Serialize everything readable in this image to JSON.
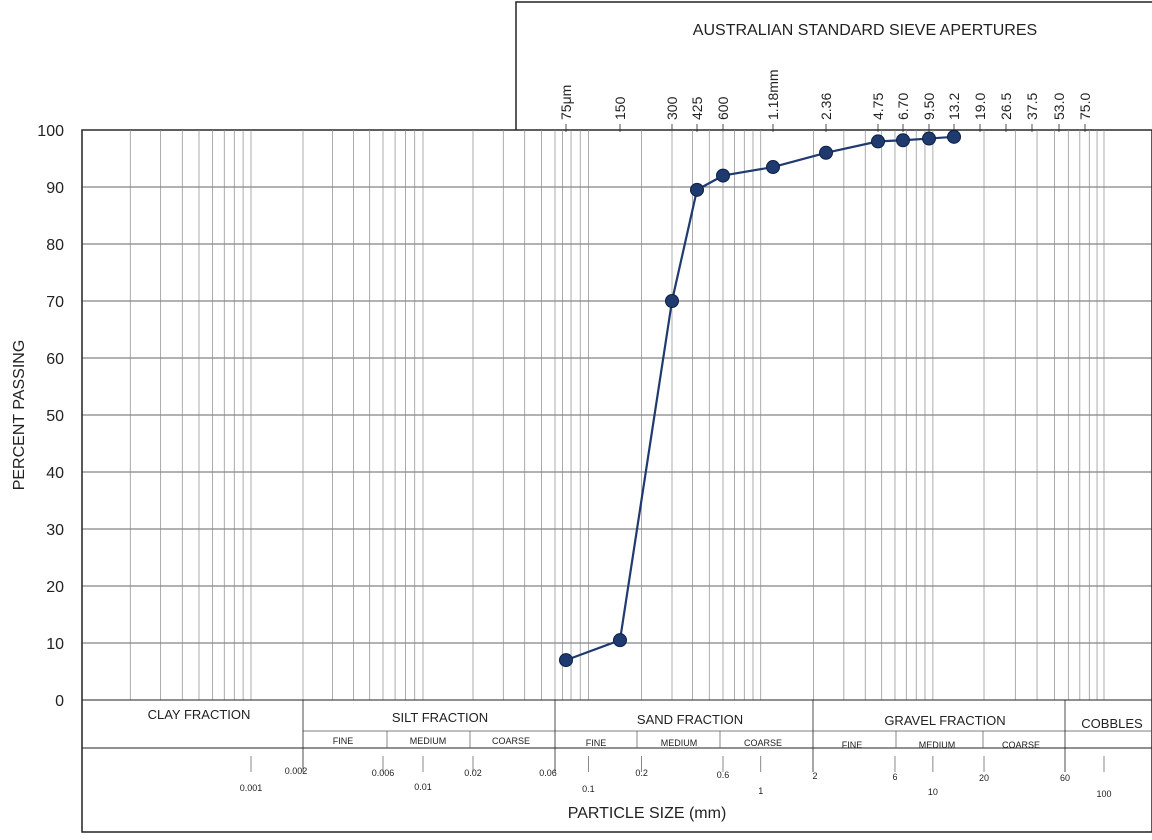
{
  "chart_data": {
    "type": "line",
    "title": "AUSTRALIAN STANDARD SIEVE APERTURES",
    "xlabel": "PARTICLE SIZE (mm)",
    "ylabel": "PERCENT PASSING",
    "x_scale": "log",
    "xlim": [
      0.0001,
      100
    ],
    "ylim": [
      0,
      100
    ],
    "yticks": [
      0,
      10,
      20,
      30,
      40,
      50,
      60,
      70,
      80,
      90,
      100
    ],
    "grid": true,
    "line_color": "#1f3a6e",
    "sieve_labels": [
      {
        "label": "75μm",
        "size": 0.075
      },
      {
        "label": "150",
        "size": 0.15
      },
      {
        "label": "300",
        "size": 0.3
      },
      {
        "label": "425",
        "size": 0.425
      },
      {
        "label": "600",
        "size": 0.6
      },
      {
        "label": "1.18mm",
        "size": 1.18
      },
      {
        "label": "2.36",
        "size": 2.36
      },
      {
        "label": "4.75",
        "size": 4.75
      },
      {
        "label": "6.70",
        "size": 6.7
      },
      {
        "label": "9.50",
        "size": 9.5
      },
      {
        "label": "13.2",
        "size": 13.2
      },
      {
        "label": "19.0",
        "size": 19.0
      },
      {
        "label": "26.5",
        "size": 26.5
      },
      {
        "label": "37.5",
        "size": 37.5
      },
      {
        "label": "53.0",
        "size": 53.0
      },
      {
        "label": "75.0",
        "size": 75.0
      }
    ],
    "series": [
      {
        "x": [
          0.075,
          0.15,
          0.3,
          0.425,
          0.6,
          1.18,
          2.36,
          4.75,
          6.7,
          9.5,
          13.2
        ],
        "y": [
          7,
          10.5,
          70,
          89.5,
          92,
          93.5,
          96,
          98,
          98.2,
          98.5,
          98.8
        ]
      }
    ],
    "fraction_labels": {
      "clay": "CLAY FRACTION",
      "silt": "SILT FRACTION",
      "sand": "SAND FRACTION",
      "gravel": "GRAVEL FRACTION",
      "cobbles": "COBBLES"
    },
    "sub_fractions": {
      "silt": [
        "FINE",
        "MEDIUM",
        "COARSE"
      ],
      "sand": [
        "FINE",
        "MEDIUM",
        "COARSE"
      ],
      "gravel": [
        "FINE",
        "MEDIUM",
        "COARSE"
      ]
    },
    "boundary_ticks": [
      "0.002",
      "0.06",
      "2",
      "60"
    ],
    "size_ticks": [
      "0.001",
      "0.006",
      "0.01",
      "0.02",
      "0.1",
      "0.2",
      "0.6",
      "1",
      "6",
      "10",
      "20",
      "100"
    ]
  }
}
